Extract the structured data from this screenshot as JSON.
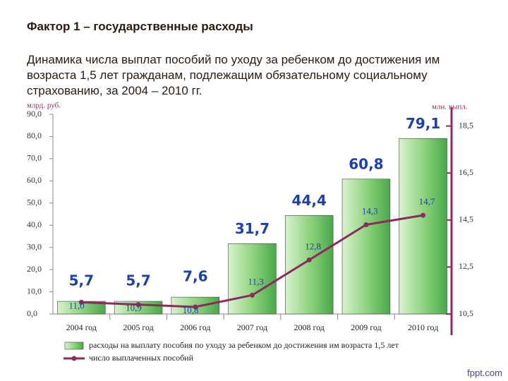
{
  "chart_data": {
    "type": "combo",
    "title": "Фактор 1 – государственные расходы",
    "subtitle": "Динамика числа выплат пособий по уходу за ребенком до достижения им возраста 1,5 лет гражданам, подлежащим обязательному социальному страхованию, за 2004 – 2010 гг.",
    "ylabel": "млрд. руб.",
    "y2label": "млн. выпл.",
    "categories": [
      "2004 год",
      "2005 год",
      "2006 год",
      "2007 год",
      "2008 год",
      "2009 год",
      "2010 год"
    ],
    "series": [
      {
        "name": "расходы на выплату пособия по уходу за ребенком до достижения им возраста 1,5 лет",
        "type": "bar",
        "color": "#7ccc6e",
        "values": [
          5.7,
          5.7,
          7.6,
          31.7,
          44.4,
          60.8,
          79.1
        ],
        "value_labels": [
          "5,7",
          "5,7",
          "7,6",
          "31,7",
          "44,4",
          "60,8",
          "79,1"
        ]
      },
      {
        "name": "число выплаченных пособий",
        "type": "line",
        "axis": "y2",
        "color": "#8e2a5e",
        "values": [
          11.0,
          10.9,
          10.8,
          11.3,
          12.8,
          14.3,
          14.7
        ],
        "value_labels": [
          "11,0",
          "10,9",
          "10,8",
          "11,3",
          "12,8",
          "14,3",
          "14,7"
        ]
      }
    ],
    "ylim": [
      0,
      90
    ],
    "yticks": [
      {
        "value": 0,
        "label": "0,0"
      },
      {
        "value": 10,
        "label": "10,0"
      },
      {
        "value": 20,
        "label": "20,0"
      },
      {
        "value": 30,
        "label": "30,0"
      },
      {
        "value": 40,
        "label": "40,0"
      },
      {
        "value": 50,
        "label": "50,0"
      },
      {
        "value": 60,
        "label": "60,0"
      },
      {
        "value": 70,
        "label": "70,0"
      },
      {
        "value": 80,
        "label": "80,0"
      },
      {
        "value": 90,
        "label": "90,0"
      }
    ],
    "y2lim": [
      10.5,
      19
    ],
    "y2ticks": [
      {
        "value": 10.5,
        "label": "10,5"
      },
      {
        "value": 12.5,
        "label": "12,5"
      },
      {
        "value": 14.5,
        "label": "14,5"
      },
      {
        "value": 16.5,
        "label": "16,5"
      },
      {
        "value": 18.5,
        "label": "18,5"
      }
    ],
    "grid": false
  },
  "footer": "fppt.com"
}
